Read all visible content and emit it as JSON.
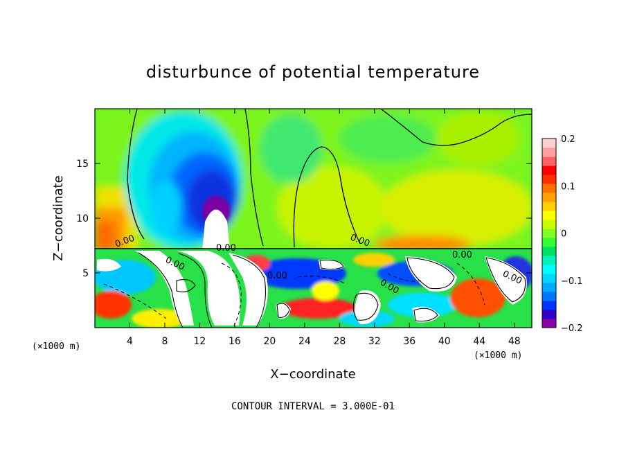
{
  "chart_data": {
    "type": "heatmap",
    "title": "disturbunce of potential temperature",
    "xlabel": "X−coordinate",
    "ylabel": "Z−coordinate",
    "x_unit_left": "(×1000 m)",
    "x_unit_right": "(×1000 m)",
    "xlim": [
      0,
      50
    ],
    "ylim": [
      0,
      20
    ],
    "x_ticks": [
      4,
      8,
      12,
      16,
      20,
      24,
      28,
      32,
      36,
      40,
      44,
      48
    ],
    "x_tick_labels": [
      "4",
      "8",
      "12",
      "16",
      "20",
      "24",
      "28",
      "32",
      "36",
      "40",
      "44",
      "48"
    ],
    "y_ticks": [
      5,
      10,
      15
    ],
    "y_tick_labels": [
      "5",
      "10",
      "15"
    ],
    "colorbar": {
      "range": [
        -0.2,
        0.2
      ],
      "ticks": [
        0.2,
        0.1,
        0,
        -0.1,
        -0.2
      ],
      "tick_labels": [
        "0.2",
        "0.1",
        "0",
        "−0.1",
        "−0.2"
      ],
      "colors": [
        "#8a00a8",
        "#3300cc",
        "#0033ff",
        "#0077ff",
        "#00aaff",
        "#00d8ff",
        "#00ffff",
        "#00f0c0",
        "#00e060",
        "#30ff30",
        "#80ff20",
        "#c8ff00",
        "#ffff00",
        "#ffd000",
        "#ffa000",
        "#ff7000",
        "#ff3000",
        "#ff0000",
        "#ff6060",
        "#ffa0a0",
        "#ffd0d0"
      ]
    },
    "contour_labels": [
      "0.00",
      "0.00",
      "0.00",
      "0.00",
      "0.00",
      "0.00",
      "0.00",
      "0.00"
    ],
    "footer": "CONTOUR INTERVAL =  3.000E-01"
  }
}
